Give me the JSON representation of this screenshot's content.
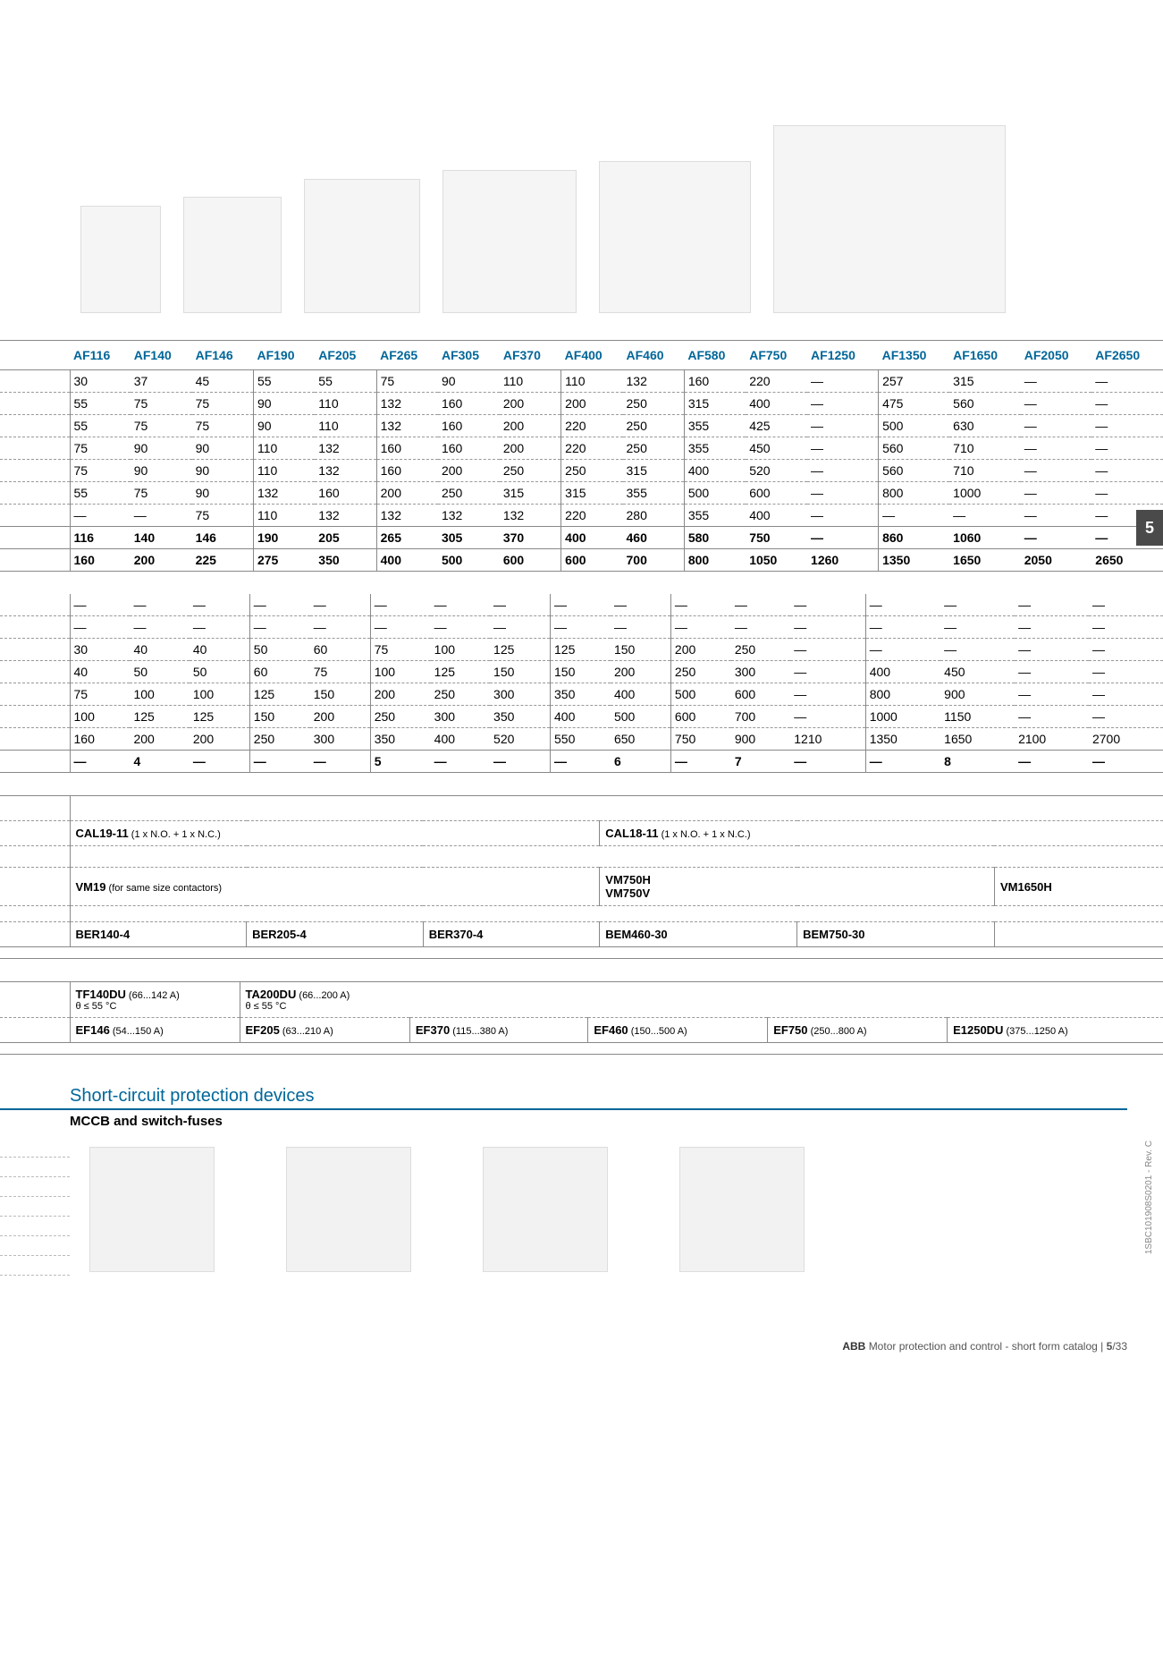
{
  "colors": {
    "header_blue": "#006699",
    "grid": "#888888",
    "dash": "#999999",
    "text": "#000000",
    "side_tab_bg": "#4a4a4a",
    "img_bg": "#f5f5f5"
  },
  "side_tab": "5",
  "side_doc": "1SBC101908S0201 - Rev. C",
  "footer": {
    "brand": "ABB",
    "title": "Motor protection and control - short form catalog",
    "sep": "|",
    "page": "5",
    "total": "/33"
  },
  "table1": {
    "headers": [
      "",
      "AF116",
      "AF140",
      "AF146",
      "AF190",
      "AF205",
      "AF265",
      "AF305",
      "AF370",
      "AF400",
      "AF460",
      "AF580",
      "AF750",
      "AF1250",
      "AF1350",
      "AF1650",
      "AF2050",
      "AF2650"
    ],
    "rows": [
      [
        "",
        "30",
        "37",
        "45",
        "55",
        "55",
        "75",
        "90",
        "110",
        "110",
        "132",
        "160",
        "220",
        "—",
        "257",
        "315",
        "—",
        "—"
      ],
      [
        "",
        "55",
        "75",
        "75",
        "90",
        "110",
        "132",
        "160",
        "200",
        "200",
        "250",
        "315",
        "400",
        "—",
        "475",
        "560",
        "—",
        "—"
      ],
      [
        "",
        "55",
        "75",
        "75",
        "90",
        "110",
        "132",
        "160",
        "200",
        "220",
        "250",
        "355",
        "425",
        "—",
        "500",
        "630",
        "—",
        "—"
      ],
      [
        "",
        "75",
        "90",
        "90",
        "110",
        "132",
        "160",
        "160",
        "200",
        "220",
        "250",
        "355",
        "450",
        "—",
        "560",
        "710",
        "—",
        "—"
      ],
      [
        "",
        "75",
        "90",
        "90",
        "110",
        "132",
        "160",
        "200",
        "250",
        "250",
        "315",
        "400",
        "520",
        "—",
        "560",
        "710",
        "—",
        "—"
      ],
      [
        "",
        "55",
        "75",
        "90",
        "132",
        "160",
        "200",
        "250",
        "315",
        "315",
        "355",
        "500",
        "600",
        "—",
        "800",
        "1000",
        "—",
        "—"
      ],
      [
        "",
        "—",
        "—",
        "75",
        "110",
        "132",
        "132",
        "132",
        "132",
        "220",
        "280",
        "355",
        "400",
        "—",
        "—",
        "—",
        "—",
        "—"
      ]
    ],
    "bold_rows": [
      [
        "",
        "116",
        "140",
        "146",
        "190",
        "205",
        "265",
        "305",
        "370",
        "400",
        "460",
        "580",
        "750",
        "—",
        "860",
        "1060",
        "—",
        "—"
      ],
      [
        "",
        "160",
        "200",
        "225",
        "275",
        "350",
        "400",
        "500",
        "600",
        "600",
        "700",
        "800",
        "1050",
        "1260",
        "1350",
        "1650",
        "2050",
        "2650"
      ]
    ]
  },
  "table2": {
    "rows": [
      [
        "",
        "—",
        "—",
        "—",
        "—",
        "—",
        "—",
        "—",
        "—",
        "—",
        "—",
        "—",
        "—",
        "—",
        "—",
        "—",
        "—",
        "—"
      ],
      [
        "",
        "—",
        "—",
        "—",
        "—",
        "—",
        "—",
        "—",
        "—",
        "—",
        "—",
        "—",
        "—",
        "—",
        "—",
        "—",
        "—",
        "—"
      ],
      [
        "",
        "30",
        "40",
        "40",
        "50",
        "60",
        "75",
        "100",
        "125",
        "125",
        "150",
        "200",
        "250",
        "—",
        "—",
        "—",
        "—",
        "—"
      ],
      [
        "",
        "40",
        "50",
        "50",
        "60",
        "75",
        "100",
        "125",
        "150",
        "150",
        "200",
        "250",
        "300",
        "—",
        "400",
        "450",
        "—",
        "—"
      ],
      [
        "",
        "75",
        "100",
        "100",
        "125",
        "150",
        "200",
        "250",
        "300",
        "350",
        "400",
        "500",
        "600",
        "—",
        "800",
        "900",
        "—",
        "—"
      ],
      [
        "",
        "100",
        "125",
        "125",
        "150",
        "200",
        "250",
        "300",
        "350",
        "400",
        "500",
        "600",
        "700",
        "—",
        "1000",
        "1150",
        "—",
        "—"
      ],
      [
        "",
        "160",
        "200",
        "200",
        "250",
        "300",
        "350",
        "400",
        "520",
        "550",
        "650",
        "750",
        "900",
        "1210",
        "1350",
        "1650",
        "2100",
        "2700"
      ]
    ],
    "bold_row": [
      "",
      "—",
      "4",
      "—",
      "—",
      "—",
      "5",
      "—",
      "—",
      "—",
      "6",
      "—",
      "7",
      "—",
      "—",
      "8",
      "—",
      "—"
    ]
  },
  "accessories": {
    "cal_row": [
      {
        "bold": "CAL19-11",
        "note": " (1 x N.O. + 1 x N.C.)"
      },
      {
        "bold": "CAL18-11",
        "note": " (1 x N.O. + 1 x N.C.)"
      }
    ],
    "vm_row": [
      {
        "bold": "VM19",
        "note": " (for same size contactors)"
      },
      {
        "bold": "VM750H"
      },
      {
        "bold": "VM750V"
      },
      {
        "bold": "VM1650H"
      }
    ],
    "ber_row": [
      "BER140-4",
      "BER205-4",
      "BER370-4",
      "BEM460-30",
      "BEM750-30"
    ]
  },
  "overload": {
    "row1": [
      {
        "bold": "TF140DU",
        "note": " (66...142 A)",
        "sub": "θ ≤ 55 °C"
      },
      {
        "bold": "TA200DU",
        "note": " (66...200 A)",
        "sub": "θ ≤ 55 °C"
      }
    ],
    "row2": [
      {
        "bold": "EF146",
        "note": " (54...150 A)"
      },
      {
        "bold": "EF205",
        "note": " (63...210 A)"
      },
      {
        "bold": "EF370",
        "note": " (115...380 A)"
      },
      {
        "bold": "EF460",
        "note": " (150...500 A)"
      },
      {
        "bold": "EF750",
        "note": " (250...800 A)"
      },
      {
        "bold": "E1250DU",
        "note": " (375...1250 A)"
      }
    ]
  },
  "scpd": {
    "title": "Short-circuit protection devices",
    "subtitle": "MCCB and switch-fuses"
  }
}
